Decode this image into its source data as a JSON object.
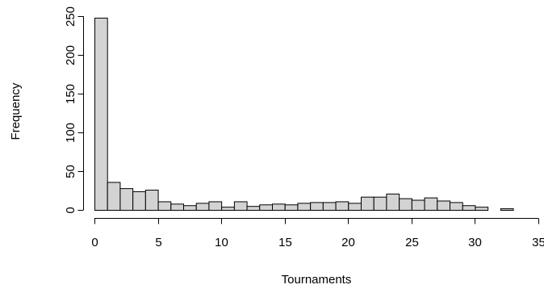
{
  "chart_data": {
    "type": "bar",
    "title": "",
    "xlabel": "Tournaments",
    "ylabel": "Frequency",
    "bin_width": 1,
    "x_start": 0,
    "values": [
      248,
      36,
      28,
      24,
      26,
      11,
      8,
      6,
      9,
      11,
      4,
      11,
      5,
      7,
      8,
      7,
      9,
      10,
      10,
      11,
      9,
      17,
      17,
      21,
      15,
      13,
      16,
      12,
      10,
      6,
      4,
      0,
      2
    ],
    "xlim": [
      0,
      35
    ],
    "ylim": [
      0,
      250
    ],
    "x_ticks": [
      0,
      5,
      10,
      15,
      20,
      25,
      30,
      35
    ],
    "y_ticks": [
      0,
      50,
      100,
      150,
      200,
      250
    ],
    "grid": false
  }
}
